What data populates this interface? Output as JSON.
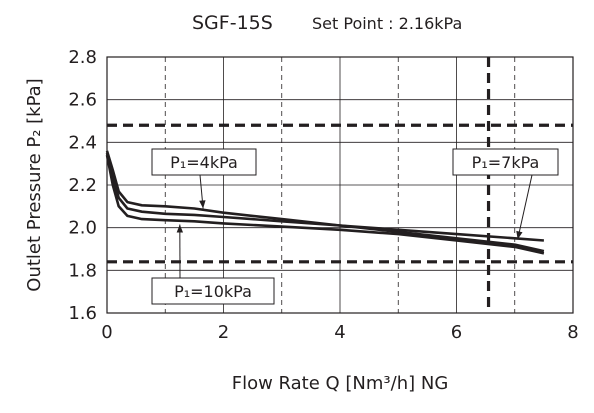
{
  "chart_data": {
    "type": "line",
    "title": "SGF-15S",
    "subtitle": "Set Point : 2.16kPa",
    "xlabel": "Flow Rate  Q [Nm³/h] NG",
    "ylabel": "Outlet Pressure P₂ [kPa]",
    "xlim": [
      0,
      8
    ],
    "ylim": [
      1.6,
      2.8
    ],
    "x_ticks": [
      "0",
      "2",
      "4",
      "6",
      "8"
    ],
    "y_ticks": [
      "1.6",
      "1.8",
      "2.0",
      "2.2",
      "2.4",
      "2.6",
      "2.8"
    ],
    "grid": true,
    "reference_lines": {
      "y": [
        2.48,
        1.84
      ],
      "x": [
        6.55
      ]
    },
    "series": [
      {
        "x": [
          0,
          0.1,
          0.2,
          0.35,
          0.6,
          1.0,
          1.5,
          2.0,
          3.0,
          4.0,
          5.0,
          6.0,
          7.0,
          7.5
        ],
        "y": [
          2.36,
          2.27,
          2.17,
          2.12,
          2.105,
          2.1,
          2.09,
          2.07,
          2.04,
          2.01,
          1.98,
          1.95,
          1.92,
          1.89
        ]
      },
      {
        "x": [
          0,
          0.1,
          0.2,
          0.35,
          0.6,
          1.0,
          1.5,
          2.0,
          3.0,
          4.0,
          5.0,
          6.0,
          7.0,
          7.5
        ],
        "y": [
          2.35,
          2.24,
          2.14,
          2.09,
          2.075,
          2.065,
          2.06,
          2.05,
          2.03,
          2.01,
          1.99,
          1.97,
          1.95,
          1.94
        ]
      },
      {
        "x": [
          0,
          0.1,
          0.2,
          0.35,
          0.6,
          1.0,
          1.5,
          2.0,
          3.0,
          4.0,
          5.0,
          6.0,
          7.0,
          7.5
        ],
        "y": [
          2.34,
          2.2,
          2.1,
          2.055,
          2.04,
          2.035,
          2.03,
          2.02,
          2.005,
          1.99,
          1.97,
          1.94,
          1.91,
          1.88
        ]
      }
    ],
    "annotations": [
      {
        "text": "P₁=4kPa",
        "target": [
          1.65,
          2.09
        ]
      },
      {
        "text": "P₁=7kPa",
        "target": [
          7.05,
          1.945
        ]
      },
      {
        "text": "P₁=10kPa",
        "target": [
          1.25,
          2.015
        ]
      }
    ]
  }
}
